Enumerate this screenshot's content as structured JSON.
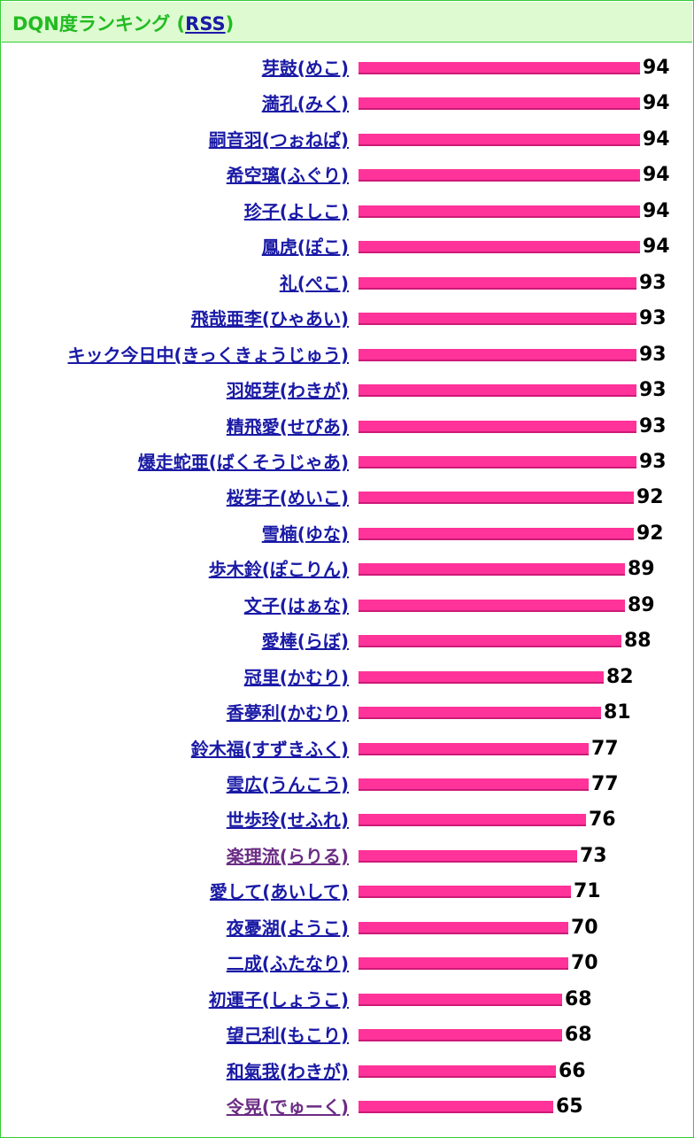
{
  "header": {
    "title": "DQN度ランキング",
    "rss_label": "RSS",
    "open_paren": " (",
    "close_paren": ")"
  },
  "colors": {
    "bar": "#ff3399",
    "link": "#1a1aa6",
    "visited_link": "#6b2c84",
    "header_text": "#22bb22",
    "header_bg": "#ddfad0",
    "border": "#33cc33"
  },
  "score_max": 100,
  "ranking": [
    {
      "name": "芽鼓(めこ)",
      "score": 94,
      "visited": false
    },
    {
      "name": "満孔(みく)",
      "score": 94,
      "visited": false
    },
    {
      "name": "嗣音羽(つぉねぱ)",
      "score": 94,
      "visited": false
    },
    {
      "name": "希空璃(ふぐり)",
      "score": 94,
      "visited": false
    },
    {
      "name": "珍子(よしこ)",
      "score": 94,
      "visited": false
    },
    {
      "name": "鳳虎(ぽこ)",
      "score": 94,
      "visited": false
    },
    {
      "name": "礼(ぺこ)",
      "score": 93,
      "visited": false
    },
    {
      "name": "飛哉亜李(ひゃあい)",
      "score": 93,
      "visited": false
    },
    {
      "name": "キック今日中(きっくきょうじゅう)",
      "score": 93,
      "visited": false
    },
    {
      "name": "羽姫芽(わきが)",
      "score": 93,
      "visited": false
    },
    {
      "name": "精飛愛(せぴあ)",
      "score": 93,
      "visited": false
    },
    {
      "name": "爆走蛇亜(ばくそうじゃあ)",
      "score": 93,
      "visited": false
    },
    {
      "name": "桜芽子(めいこ)",
      "score": 92,
      "visited": false
    },
    {
      "name": "雪楠(ゆな)",
      "score": 92,
      "visited": false
    },
    {
      "name": "歩木鈴(ぽこりん)",
      "score": 89,
      "visited": false
    },
    {
      "name": "文子(はぁな)",
      "score": 89,
      "visited": false
    },
    {
      "name": "愛棒(らぼ)",
      "score": 88,
      "visited": false
    },
    {
      "name": "冠里(かむり)",
      "score": 82,
      "visited": false
    },
    {
      "name": "香夢利(かむり)",
      "score": 81,
      "visited": false
    },
    {
      "name": "鈴木福(すずきふく)",
      "score": 77,
      "visited": false
    },
    {
      "name": "雲広(うんこう)",
      "score": 77,
      "visited": false
    },
    {
      "name": "世歩玲(せふれ)",
      "score": 76,
      "visited": false
    },
    {
      "name": "楽理流(らりる)",
      "score": 73,
      "visited": true
    },
    {
      "name": "愛して(あいして)",
      "score": 71,
      "visited": false
    },
    {
      "name": "夜憂湖(ようこ)",
      "score": 70,
      "visited": false
    },
    {
      "name": "二成(ふたなり)",
      "score": 70,
      "visited": false
    },
    {
      "name": "初運子(しょうこ)",
      "score": 68,
      "visited": false
    },
    {
      "name": "望己利(もこり)",
      "score": 68,
      "visited": false
    },
    {
      "name": "和氣我(わきが)",
      "score": 66,
      "visited": false
    },
    {
      "name": "令晃(でゅーく)",
      "score": 65,
      "visited": true
    }
  ]
}
